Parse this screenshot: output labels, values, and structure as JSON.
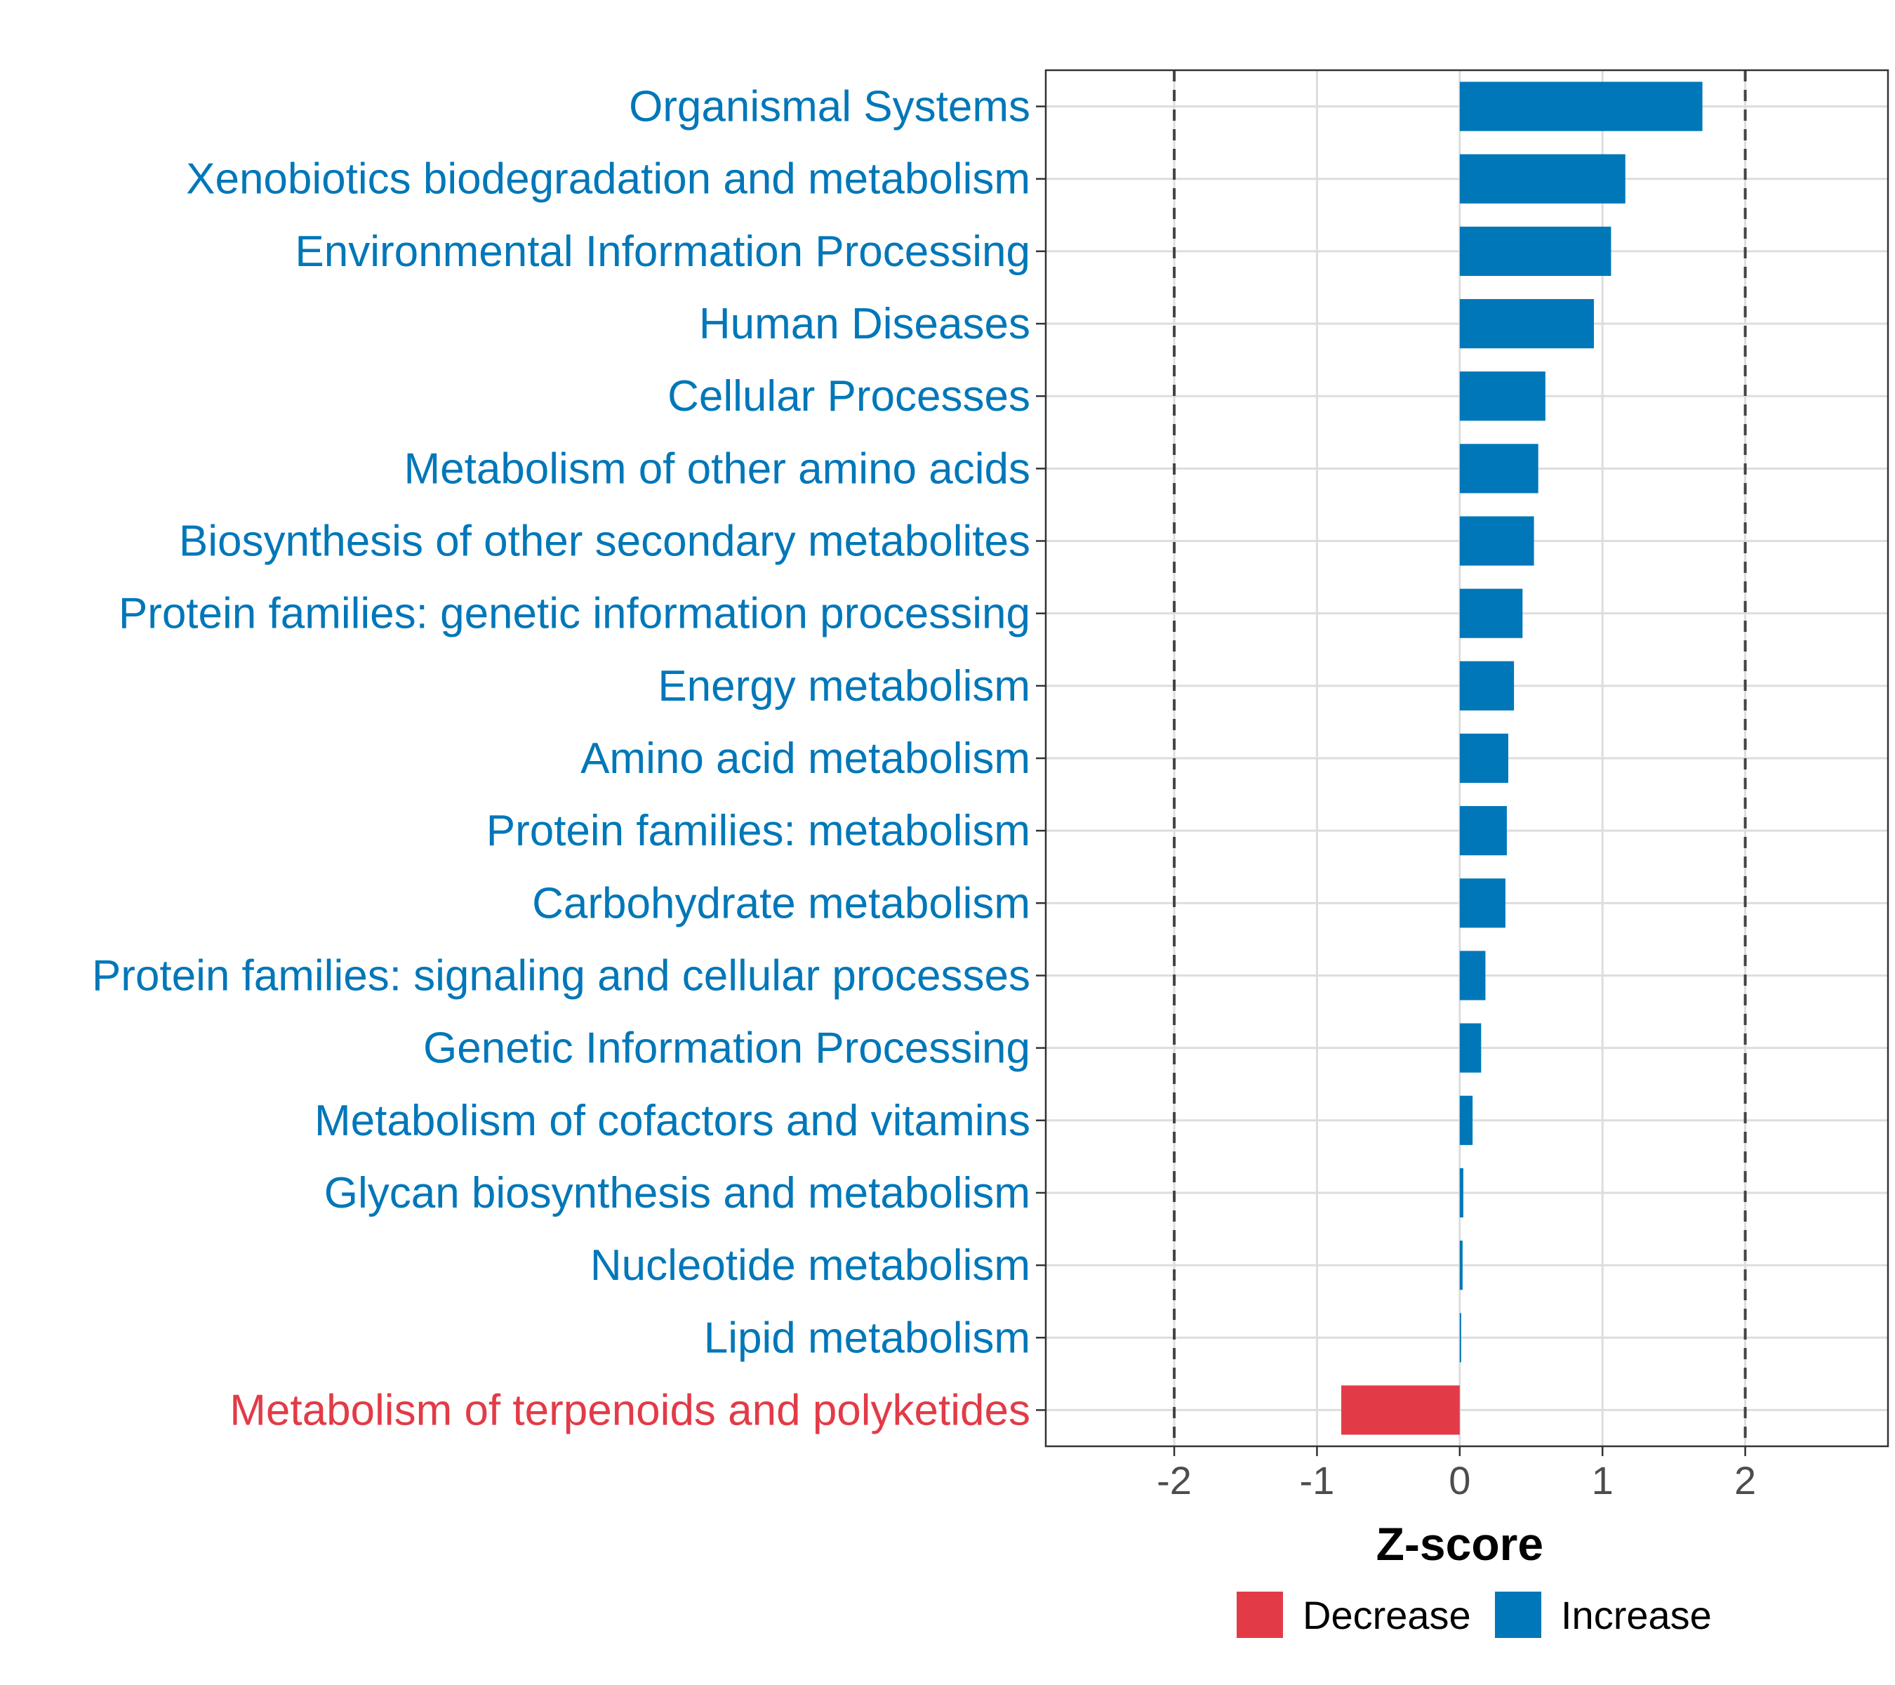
{
  "chart_data": {
    "type": "bar",
    "orientation": "horizontal",
    "xlabel": "Z-score",
    "xlim": [
      -2.9,
      3.0
    ],
    "xticks": [
      -2,
      -1,
      0,
      1,
      2
    ],
    "reference_lines": [
      -2,
      2
    ],
    "grid": true,
    "legend_position": "bottom",
    "colors": {
      "Decrease": "#e23b47",
      "Increase": "#0077b8"
    },
    "legend": [
      {
        "key": "Decrease",
        "label": "Decrease"
      },
      {
        "key": "Increase",
        "label": "Increase"
      }
    ],
    "categories": [
      "Organismal Systems",
      "Xenobiotics biodegradation and metabolism",
      "Environmental Information Processing",
      "Human Diseases",
      "Cellular Processes",
      "Metabolism of other amino acids",
      "Biosynthesis of other secondary metabolites",
      "Protein families: genetic information processing",
      "Energy metabolism",
      "Amino acid metabolism",
      "Protein families: metabolism",
      "Carbohydrate metabolism",
      "Protein families: signaling and cellular processes",
      "Genetic Information Processing",
      "Metabolism of cofactors and vitamins",
      "Glycan biosynthesis and metabolism",
      "Nucleotide metabolism",
      "Lipid metabolism",
      "Metabolism of terpenoids and polyketides"
    ],
    "values": [
      1.7,
      1.16,
      1.06,
      0.94,
      0.6,
      0.55,
      0.52,
      0.44,
      0.38,
      0.34,
      0.33,
      0.32,
      0.18,
      0.15,
      0.09,
      0.025,
      0.02,
      0.008,
      -0.83
    ],
    "groups": [
      "Increase",
      "Increase",
      "Increase",
      "Increase",
      "Increase",
      "Increase",
      "Increase",
      "Increase",
      "Increase",
      "Increase",
      "Increase",
      "Increase",
      "Increase",
      "Increase",
      "Increase",
      "Increase",
      "Increase",
      "Increase",
      "Decrease"
    ]
  }
}
